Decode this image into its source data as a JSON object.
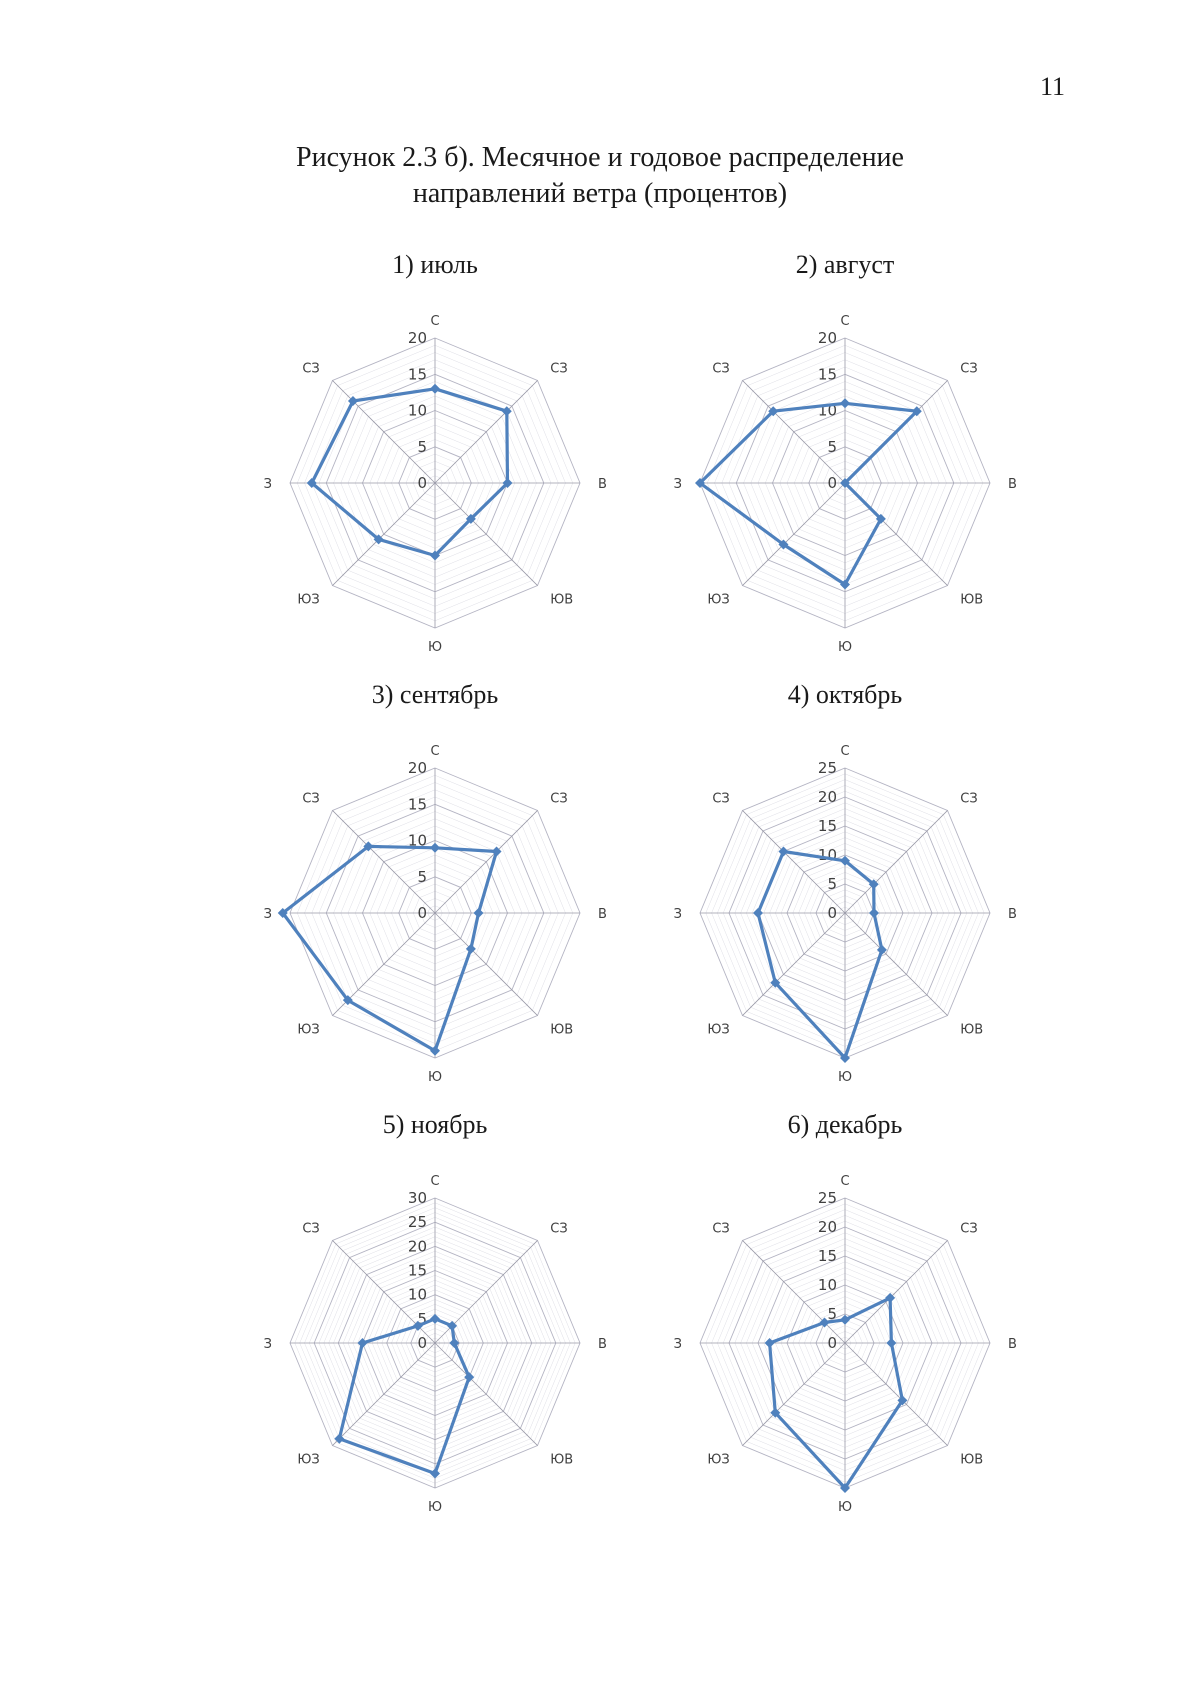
{
  "page": {
    "number": "11"
  },
  "caption": {
    "line1": "Рисунок 2.3 б). Месячное и годовое распределение",
    "line2": "направлений ветра (процентов)"
  },
  "style": {
    "series_color": "#4f81bd",
    "grid_color": "#b0b0c0",
    "axis_color": "#9a9aa8"
  },
  "chart_data": [
    {
      "type": "radar",
      "title": "1) июль",
      "categories": [
        "С",
        "СЗ",
        "В",
        "ЮВ",
        "Ю",
        "ЮЗ",
        "З",
        "СЗ"
      ],
      "ticks": [
        "0",
        "5",
        "10",
        "15",
        "20"
      ],
      "rmax": 20,
      "series": [
        {
          "name": "июль",
          "values": [
            13,
            14,
            10,
            7,
            10,
            11,
            17,
            16
          ]
        }
      ]
    },
    {
      "type": "radar",
      "title": "2) август",
      "categories": [
        "С",
        "СЗ",
        "В",
        "ЮВ",
        "Ю",
        "ЮЗ",
        "З",
        "СЗ"
      ],
      "ticks": [
        "0",
        "5",
        "10",
        "15",
        "20"
      ],
      "rmax": 20,
      "series": [
        {
          "name": "август",
          "values": [
            11,
            14,
            0,
            7,
            14,
            12,
            20,
            14
          ]
        }
      ]
    },
    {
      "type": "radar",
      "title": "3) сентябрь",
      "categories": [
        "С",
        "СЗ",
        "В",
        "ЮВ",
        "Ю",
        "ЮЗ",
        "З",
        "СЗ"
      ],
      "ticks": [
        "0",
        "5",
        "10",
        "15",
        "20"
      ],
      "rmax": 20,
      "series": [
        {
          "name": "сентябрь",
          "values": [
            9,
            12,
            6,
            7,
            19,
            17,
            21,
            13
          ]
        }
      ]
    },
    {
      "type": "radar",
      "title": "4) октябрь",
      "categories": [
        "С",
        "СЗ",
        "В",
        "ЮВ",
        "Ю",
        "ЮЗ",
        "З",
        "СЗ"
      ],
      "ticks": [
        "0",
        "5",
        "10",
        "15",
        "20",
        "25"
      ],
      "rmax": 25,
      "series": [
        {
          "name": "октябрь",
          "values": [
            9,
            7,
            5,
            9,
            25,
            17,
            15,
            15
          ]
        }
      ]
    },
    {
      "type": "radar",
      "title": "5) ноябрь",
      "categories": [
        "С",
        "СЗ",
        "В",
        "ЮВ",
        "Ю",
        "ЮЗ",
        "З",
        "СЗ"
      ],
      "ticks": [
        "0",
        "5",
        "10",
        "15",
        "20",
        "25",
        "30"
      ],
      "rmax": 30,
      "series": [
        {
          "name": "ноябрь",
          "values": [
            5,
            5,
            4,
            10,
            27,
            28,
            15,
            5
          ]
        }
      ]
    },
    {
      "type": "radar",
      "title": "6) декабрь",
      "categories": [
        "С",
        "СЗ",
        "В",
        "ЮВ",
        "Ю",
        "ЮЗ",
        "З",
        "СЗ"
      ],
      "ticks": [
        "0",
        "5",
        "10",
        "15",
        "20",
        "25"
      ],
      "rmax": 25,
      "series": [
        {
          "name": "декабрь",
          "values": [
            4,
            11,
            8,
            14,
            25,
            17,
            13,
            5
          ]
        }
      ]
    }
  ]
}
